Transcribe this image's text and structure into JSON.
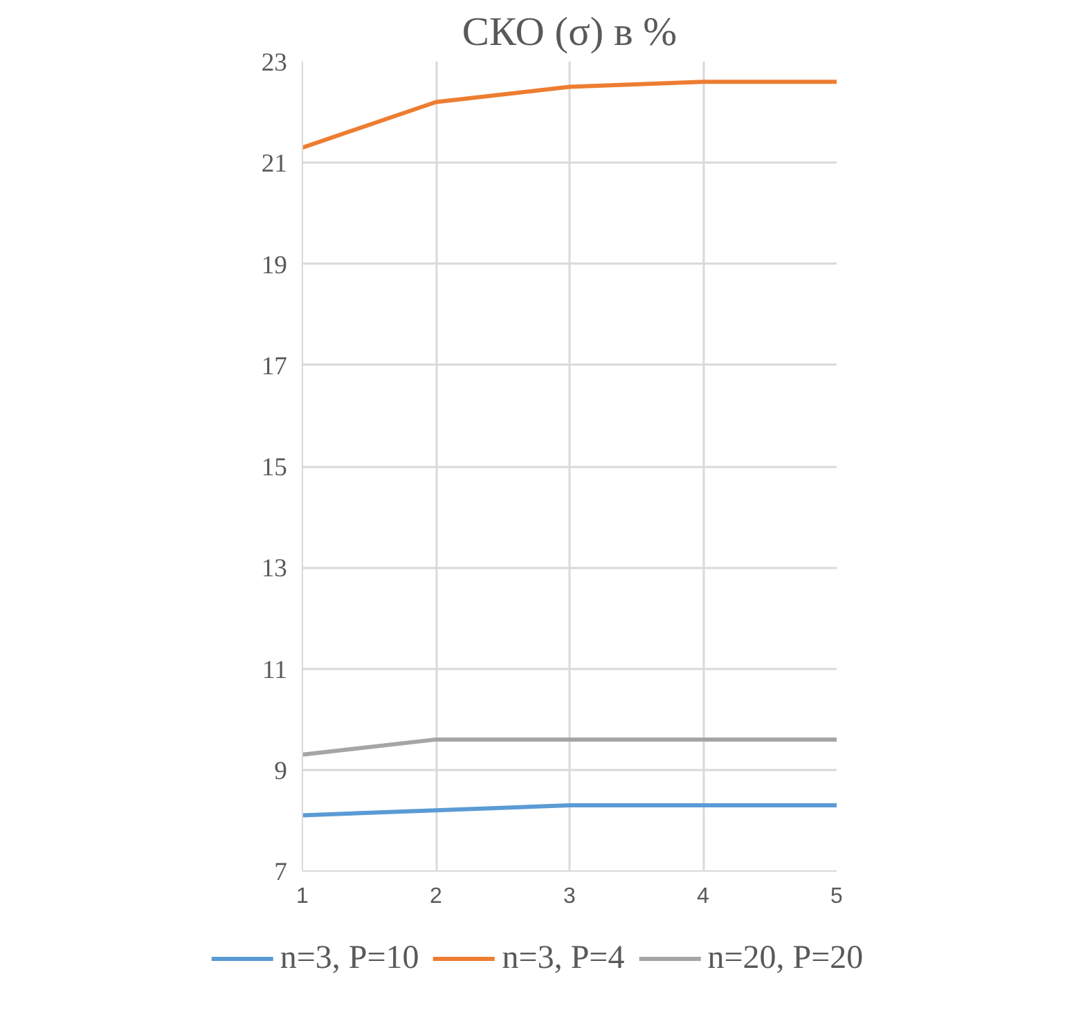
{
  "chart_data": {
    "type": "line",
    "title": "СКО (σ) в %",
    "x": [
      1,
      2,
      3,
      4,
      5
    ],
    "xlim": [
      1,
      5
    ],
    "xticks": [
      1,
      2,
      3,
      4,
      5
    ],
    "ylim": [
      7,
      23
    ],
    "yticks": [
      7,
      9,
      11,
      13,
      15,
      17,
      19,
      21,
      23
    ],
    "grid": true,
    "legend": "bottom",
    "marker": "none",
    "line_style": "solid",
    "series": [
      {
        "name": "n=3, P=10",
        "color": "#5b9bd5",
        "values": [
          8.1,
          8.2,
          8.3,
          8.3,
          8.3
        ]
      },
      {
        "name": "n=3, P=4",
        "color": "#ed7d31",
        "values": [
          21.3,
          22.2,
          22.5,
          22.6,
          22.6
        ]
      },
      {
        "name": "n=20, P=20",
        "color": "#a5a5a5",
        "values": [
          9.3,
          9.6,
          9.6,
          9.6,
          9.6
        ]
      }
    ]
  }
}
